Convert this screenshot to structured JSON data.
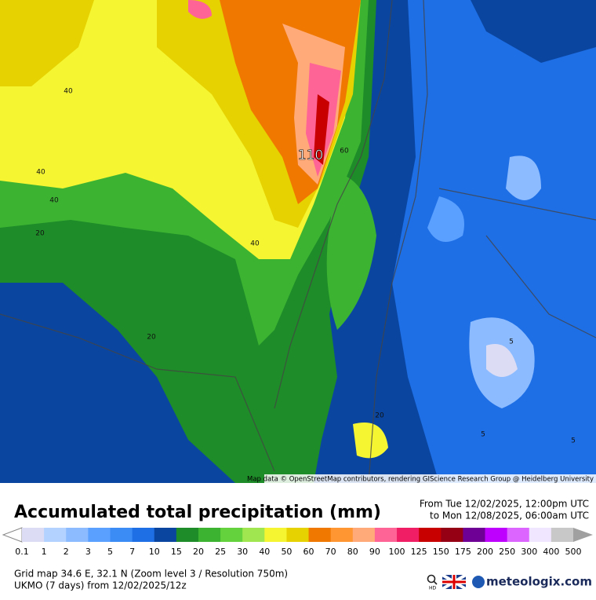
{
  "map": {
    "contour_labels": [
      "40",
      "40",
      "40",
      "20",
      "40",
      "110",
      "60",
      "20",
      "20",
      "5",
      "5",
      "5"
    ],
    "attribution": "Map data © OpenStreetMap contributors, rendering GIScience Research Group @ Heidelberg University"
  },
  "legend": {
    "title": "Accumulated total precipitation (mm)",
    "period_from": "From Tue 12/02/2025, 12:00pm UTC",
    "period_to": "to Mon 12/08/2025, 06:00am UTC",
    "labels": [
      0.1,
      1,
      2,
      3,
      5,
      7,
      10,
      15,
      20,
      25,
      30,
      40,
      50,
      60,
      70,
      80,
      90,
      100,
      125,
      150,
      175,
      200,
      250,
      300,
      400,
      500
    ],
    "colors": [
      "#dcdcf5",
      "#b4d2ff",
      "#8cbcff",
      "#5aa0ff",
      "#3c8cf5",
      "#1e6ee6",
      "#0a46a0",
      "#1e8c28",
      "#3cb432",
      "#64d23c",
      "#a0e650",
      "#f5f532",
      "#e6d200",
      "#f07800",
      "#ff9632",
      "#ffaa78",
      "#ff6496",
      "#f01e64",
      "#c80000",
      "#960014",
      "#6e0096",
      "#be00ff",
      "#dc64ff",
      "#f0e6ff",
      "#c8c8c8"
    ]
  },
  "footer": {
    "grid": "Grid map 34.6 E, 32.1 N (Zoom level 3 / Resolution 750m)",
    "model": "UKMO (7 days) from 12/02/2025/12z",
    "hd": "HD",
    "brand": "meteologix.com"
  }
}
